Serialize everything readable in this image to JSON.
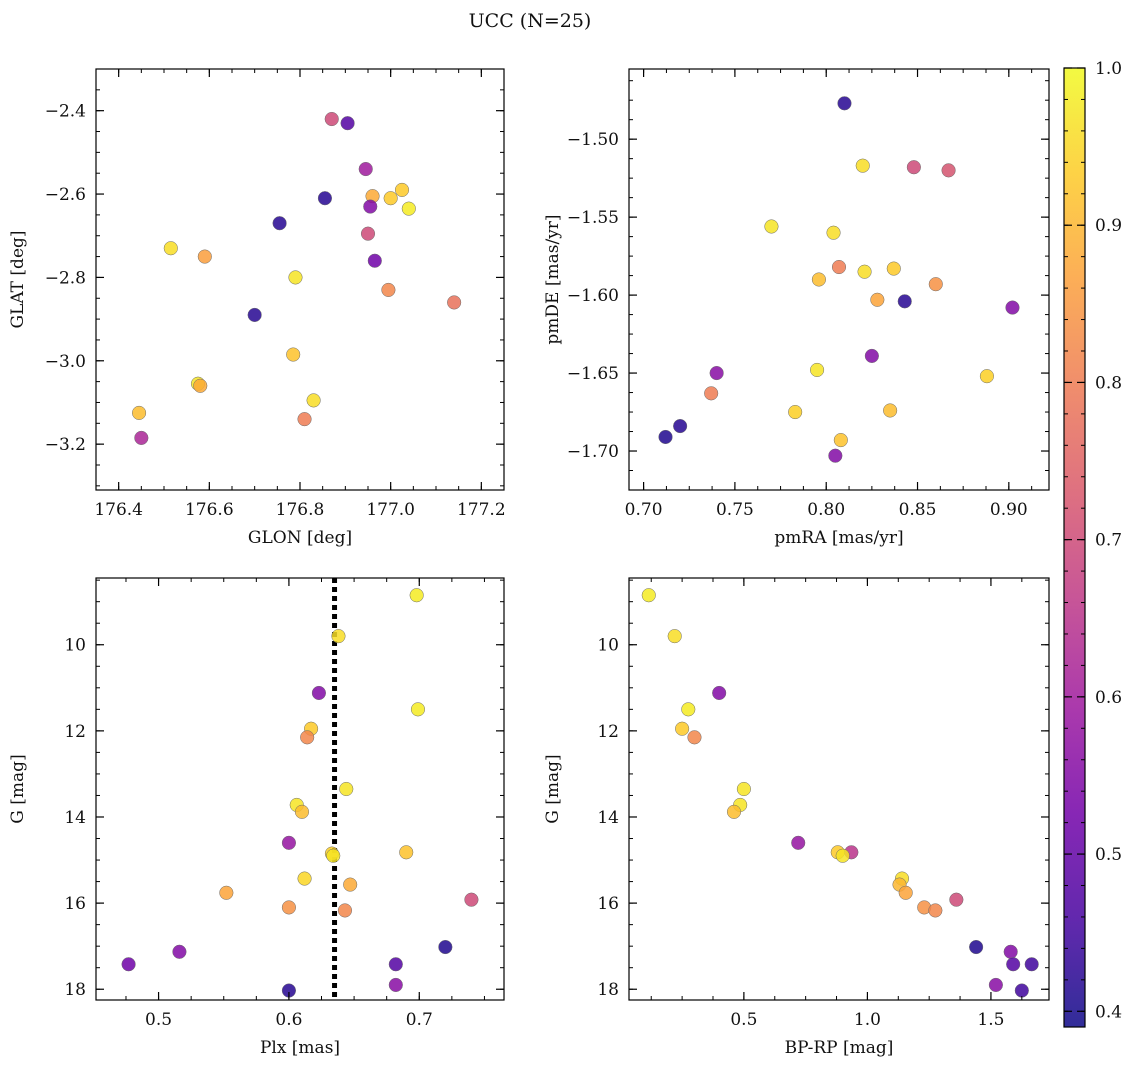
{
  "figure": {
    "suptitle": "UCC (N=25)"
  },
  "colorbar": {
    "cmap": "plasma",
    "range": [
      0.39,
      1.0
    ],
    "ticks": [
      0.4,
      0.5,
      0.6,
      0.7,
      0.8,
      0.9,
      1.0
    ],
    "tick_labels": [
      "0.4",
      "0.5",
      "0.6",
      "0.7",
      "0.8",
      "0.9",
      "1.0"
    ],
    "stops": [
      "#0d0887",
      "#46039f",
      "#7201a8",
      "#9c179e",
      "#bd3786",
      "#d8576b",
      "#ed7953",
      "#fb9f3a",
      "#fdca26",
      "#f0f921"
    ]
  },
  "chart_data": [
    {
      "type": "scatter",
      "xlabel": "GLON [deg]",
      "ylabel": "GLAT [deg]",
      "xlim": [
        176.35,
        177.25
      ],
      "ylim": [
        -3.31,
        -2.3
      ],
      "y_inverted": false,
      "xticks": [
        176.4,
        176.6,
        176.8,
        177.0,
        177.2
      ],
      "xtick_labels": [
        "176.4",
        "176.6",
        "176.8",
        "177.0",
        "177.2"
      ],
      "yticks": [
        -3.2,
        -3.0,
        -2.8,
        -2.6,
        -2.4
      ],
      "ytick_labels": [
        "−3.2",
        "−3.0",
        "−2.8",
        "−2.6",
        "−2.4"
      ],
      "points": [
        {
          "x": 176.87,
          "y": -2.42,
          "c": 0.7
        },
        {
          "x": 176.905,
          "y": -2.43,
          "c": 0.48
        },
        {
          "x": 176.945,
          "y": -2.54,
          "c": 0.6
        },
        {
          "x": 176.96,
          "y": -2.605,
          "c": 0.88
        },
        {
          "x": 177.025,
          "y": -2.59,
          "c": 0.93
        },
        {
          "x": 177.0,
          "y": -2.61,
          "c": 0.93
        },
        {
          "x": 177.04,
          "y": -2.635,
          "c": 0.98
        },
        {
          "x": 176.855,
          "y": -2.61,
          "c": 0.42
        },
        {
          "x": 176.955,
          "y": -2.63,
          "c": 0.55
        },
        {
          "x": 176.755,
          "y": -2.67,
          "c": 0.42
        },
        {
          "x": 176.95,
          "y": -2.695,
          "c": 0.7
        },
        {
          "x": 176.515,
          "y": -2.73,
          "c": 0.96
        },
        {
          "x": 176.59,
          "y": -2.75,
          "c": 0.86
        },
        {
          "x": 176.965,
          "y": -2.76,
          "c": 0.52
        },
        {
          "x": 176.79,
          "y": -2.8,
          "c": 0.97
        },
        {
          "x": 176.995,
          "y": -2.83,
          "c": 0.82
        },
        {
          "x": 177.14,
          "y": -2.86,
          "c": 0.78
        },
        {
          "x": 176.7,
          "y": -2.89,
          "c": 0.42
        },
        {
          "x": 176.785,
          "y": -2.985,
          "c": 0.92
        },
        {
          "x": 176.575,
          "y": -3.055,
          "c": 0.97
        },
        {
          "x": 176.58,
          "y": -3.06,
          "c": 0.88
        },
        {
          "x": 176.83,
          "y": -3.095,
          "c": 0.96
        },
        {
          "x": 176.445,
          "y": -3.125,
          "c": 0.91
        },
        {
          "x": 176.81,
          "y": -3.14,
          "c": 0.8
        },
        {
          "x": 176.45,
          "y": -3.185,
          "c": 0.62
        }
      ]
    },
    {
      "type": "scatter",
      "xlabel": "pmRA [mas/yr]",
      "ylabel": "pmDE [mas/yr]",
      "xlim": [
        0.692,
        0.922
      ],
      "ylim": [
        -1.725,
        -1.455
      ],
      "y_inverted": false,
      "xticks": [
        0.7,
        0.75,
        0.8,
        0.85,
        0.9
      ],
      "xtick_labels": [
        "0.70",
        "0.75",
        "0.80",
        "0.85",
        "0.90"
      ],
      "yticks": [
        -1.7,
        -1.65,
        -1.6,
        -1.55,
        -1.5
      ],
      "ytick_labels": [
        "−1.70",
        "−1.65",
        "−1.60",
        "−1.55",
        "−1.50"
      ],
      "points": [
        {
          "x": 0.81,
          "y": -1.477,
          "c": 0.42
        },
        {
          "x": 0.82,
          "y": -1.517,
          "c": 0.96
        },
        {
          "x": 0.848,
          "y": -1.518,
          "c": 0.7
        },
        {
          "x": 0.867,
          "y": -1.52,
          "c": 0.72
        },
        {
          "x": 0.77,
          "y": -1.556,
          "c": 0.97
        },
        {
          "x": 0.804,
          "y": -1.56,
          "c": 0.96
        },
        {
          "x": 0.807,
          "y": -1.582,
          "c": 0.8
        },
        {
          "x": 0.821,
          "y": -1.585,
          "c": 0.96
        },
        {
          "x": 0.837,
          "y": -1.583,
          "c": 0.93
        },
        {
          "x": 0.796,
          "y": -1.59,
          "c": 0.91
        },
        {
          "x": 0.86,
          "y": -1.593,
          "c": 0.84
        },
        {
          "x": 0.828,
          "y": -1.603,
          "c": 0.87
        },
        {
          "x": 0.843,
          "y": -1.604,
          "c": 0.42
        },
        {
          "x": 0.902,
          "y": -1.608,
          "c": 0.55
        },
        {
          "x": 0.825,
          "y": -1.639,
          "c": 0.55
        },
        {
          "x": 0.795,
          "y": -1.648,
          "c": 0.97
        },
        {
          "x": 0.74,
          "y": -1.65,
          "c": 0.56
        },
        {
          "x": 0.888,
          "y": -1.652,
          "c": 0.94
        },
        {
          "x": 0.737,
          "y": -1.663,
          "c": 0.8
        },
        {
          "x": 0.783,
          "y": -1.675,
          "c": 0.94
        },
        {
          "x": 0.835,
          "y": -1.674,
          "c": 0.91
        },
        {
          "x": 0.72,
          "y": -1.684,
          "c": 0.42
        },
        {
          "x": 0.712,
          "y": -1.691,
          "c": 0.41
        },
        {
          "x": 0.808,
          "y": -1.693,
          "c": 0.92
        },
        {
          "x": 0.805,
          "y": -1.703,
          "c": 0.55
        }
      ]
    },
    {
      "type": "scatter",
      "xlabel": "Plx [mas]",
      "ylabel": "G [mag]",
      "xlim": [
        0.452,
        0.765
      ],
      "ylim": [
        18.25,
        8.45
      ],
      "y_inverted": true,
      "xticks": [
        0.5,
        0.6,
        0.7
      ],
      "xtick_labels": [
        "0.5",
        "0.6",
        "0.7"
      ],
      "yticks": [
        10,
        12,
        14,
        16,
        18
      ],
      "ytick_labels": [
        "10",
        "12",
        "14",
        "16",
        "18"
      ],
      "vline": {
        "x": 0.635,
        "style": "dotted",
        "color": "#000000"
      },
      "points": [
        {
          "x": 0.698,
          "y": 8.85,
          "c": 0.98
        },
        {
          "x": 0.638,
          "y": 9.8,
          "c": 0.96
        },
        {
          "x": 0.623,
          "y": 11.12,
          "c": 0.55
        },
        {
          "x": 0.699,
          "y": 11.5,
          "c": 0.98
        },
        {
          "x": 0.617,
          "y": 11.95,
          "c": 0.93
        },
        {
          "x": 0.614,
          "y": 12.15,
          "c": 0.82
        },
        {
          "x": 0.644,
          "y": 13.35,
          "c": 0.97
        },
        {
          "x": 0.606,
          "y": 13.72,
          "c": 0.97
        },
        {
          "x": 0.61,
          "y": 13.88,
          "c": 0.91
        },
        {
          "x": 0.6,
          "y": 14.6,
          "c": 0.58
        },
        {
          "x": 0.69,
          "y": 14.82,
          "c": 0.92
        },
        {
          "x": 0.633,
          "y": 14.85,
          "c": 0.94
        },
        {
          "x": 0.634,
          "y": 14.9,
          "c": 0.97
        },
        {
          "x": 0.612,
          "y": 15.43,
          "c": 0.95
        },
        {
          "x": 0.647,
          "y": 15.57,
          "c": 0.88
        },
        {
          "x": 0.552,
          "y": 15.76,
          "c": 0.87
        },
        {
          "x": 0.74,
          "y": 15.92,
          "c": 0.7
        },
        {
          "x": 0.6,
          "y": 16.1,
          "c": 0.84
        },
        {
          "x": 0.643,
          "y": 16.17,
          "c": 0.82
        },
        {
          "x": 0.72,
          "y": 17.02,
          "c": 0.41
        },
        {
          "x": 0.516,
          "y": 17.13,
          "c": 0.55
        },
        {
          "x": 0.477,
          "y": 17.42,
          "c": 0.52
        },
        {
          "x": 0.682,
          "y": 17.42,
          "c": 0.48
        },
        {
          "x": 0.682,
          "y": 17.9,
          "c": 0.56
        },
        {
          "x": 0.6,
          "y": 18.03,
          "c": 0.42
        }
      ]
    },
    {
      "type": "scatter",
      "xlabel": "BP-RP [mag]",
      "ylabel": "G [mag]",
      "xlim": [
        0.035,
        1.735
      ],
      "ylim": [
        18.25,
        8.45
      ],
      "y_inverted": true,
      "xticks": [
        0.5,
        1.0,
        1.5
      ],
      "xtick_labels": [
        "0.5",
        "1.0",
        "1.5"
      ],
      "yticks": [
        10,
        12,
        14,
        16,
        18
      ],
      "ytick_labels": [
        "10",
        "12",
        "14",
        "16",
        "18"
      ],
      "points": [
        {
          "x": 0.115,
          "y": 8.85,
          "c": 0.98
        },
        {
          "x": 0.22,
          "y": 9.8,
          "c": 0.96
        },
        {
          "x": 0.4,
          "y": 11.12,
          "c": 0.55
        },
        {
          "x": 0.275,
          "y": 11.5,
          "c": 0.98
        },
        {
          "x": 0.25,
          "y": 11.95,
          "c": 0.93
        },
        {
          "x": 0.3,
          "y": 12.15,
          "c": 0.82
        },
        {
          "x": 0.5,
          "y": 13.35,
          "c": 0.97
        },
        {
          "x": 0.485,
          "y": 13.72,
          "c": 0.97
        },
        {
          "x": 0.46,
          "y": 13.88,
          "c": 0.91
        },
        {
          "x": 0.72,
          "y": 14.6,
          "c": 0.58
        },
        {
          "x": 0.935,
          "y": 14.82,
          "c": 0.65
        },
        {
          "x": 0.88,
          "y": 14.82,
          "c": 0.93
        },
        {
          "x": 0.9,
          "y": 14.9,
          "c": 0.97
        },
        {
          "x": 1.14,
          "y": 15.43,
          "c": 0.96
        },
        {
          "x": 1.13,
          "y": 15.57,
          "c": 0.9
        },
        {
          "x": 1.155,
          "y": 15.76,
          "c": 0.87
        },
        {
          "x": 1.36,
          "y": 15.92,
          "c": 0.7
        },
        {
          "x": 1.23,
          "y": 16.1,
          "c": 0.84
        },
        {
          "x": 1.275,
          "y": 16.17,
          "c": 0.82
        },
        {
          "x": 1.44,
          "y": 17.02,
          "c": 0.41
        },
        {
          "x": 1.58,
          "y": 17.13,
          "c": 0.55
        },
        {
          "x": 1.59,
          "y": 17.42,
          "c": 0.48
        },
        {
          "x": 1.665,
          "y": 17.42,
          "c": 0.45
        },
        {
          "x": 1.52,
          "y": 17.9,
          "c": 0.56
        },
        {
          "x": 1.625,
          "y": 18.03,
          "c": 0.45
        }
      ]
    }
  ]
}
